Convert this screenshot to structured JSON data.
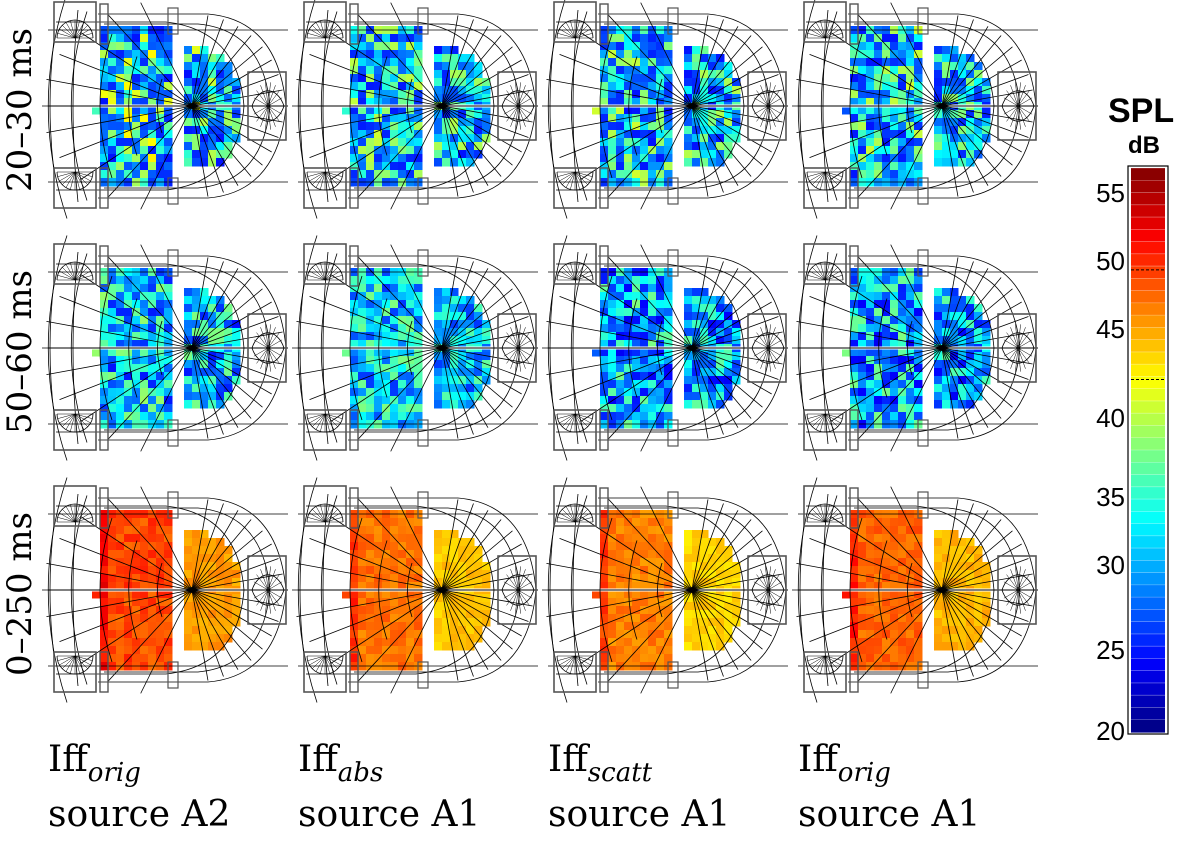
{
  "rows": [
    {
      "label": "20–30 ms"
    },
    {
      "label": "50–60 ms"
    },
    {
      "label": "0–250 ms"
    }
  ],
  "columns": [
    {
      "main": "Iff",
      "sub": "orig",
      "source": "source A2"
    },
    {
      "main": "Iff",
      "sub": "abs",
      "source": "source A1"
    },
    {
      "main": "Iff",
      "sub": "scatt",
      "source": "source A1"
    },
    {
      "main": "Iff",
      "sub": "orig",
      "source": "source A1"
    }
  ],
  "colorbar": {
    "title": "SPL",
    "unit": "dB",
    "min": 20,
    "max": 56,
    "ticks": [
      "55",
      "50",
      "45",
      "40",
      "35",
      "30",
      "25",
      "20"
    ],
    "markers": [
      49.5,
      42.5
    ]
  },
  "panels": [
    {
      "row": 0,
      "col": 0,
      "level": 36,
      "noise": 7,
      "dark_fraction": 0.45
    },
    {
      "row": 0,
      "col": 1,
      "level": 35,
      "noise": 6,
      "dark_fraction": 0.35
    },
    {
      "row": 0,
      "col": 2,
      "level": 35,
      "noise": 6,
      "dark_fraction": 0.4
    },
    {
      "row": 0,
      "col": 3,
      "level": 35,
      "noise": 6,
      "dark_fraction": 0.38
    },
    {
      "row": 1,
      "col": 0,
      "level": 34,
      "noise": 5,
      "dark_fraction": 0.3
    },
    {
      "row": 1,
      "col": 1,
      "level": 34,
      "noise": 4,
      "dark_fraction": 0.25
    },
    {
      "row": 1,
      "col": 2,
      "level": 33,
      "noise": 5,
      "dark_fraction": 0.35
    },
    {
      "row": 1,
      "col": 3,
      "level": 33,
      "noise": 5,
      "dark_fraction": 0.32
    },
    {
      "row": 2,
      "col": 0,
      "level": 49,
      "noise": 1.5,
      "dark_fraction": 0
    },
    {
      "row": 2,
      "col": 1,
      "level": 47.5,
      "noise": 1.2,
      "dark_fraction": 0
    },
    {
      "row": 2,
      "col": 2,
      "level": 47,
      "noise": 1.2,
      "dark_fraction": 0
    },
    {
      "row": 2,
      "col": 3,
      "level": 48,
      "noise": 1.2,
      "dark_fraction": 0
    }
  ],
  "colors": {
    "background": "#ffffff",
    "wire": "#000000",
    "frame": "#555555"
  }
}
